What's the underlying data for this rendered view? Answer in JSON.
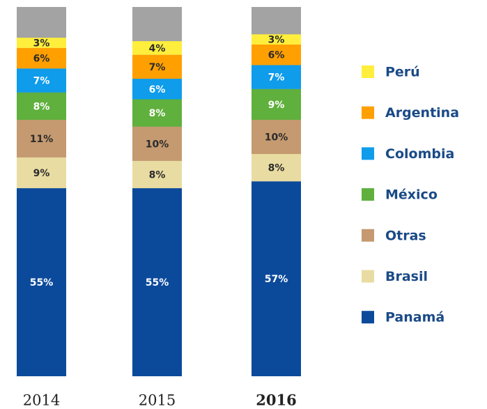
{
  "chart_data": {
    "type": "stacked_bar",
    "categories": [
      "2014",
      "2015",
      "2016"
    ],
    "series": [
      {
        "name": "Panamá",
        "color": "#0b4a9b",
        "values": [
          55,
          55,
          57
        ],
        "value_labels": [
          "55%",
          "55%",
          "57%"
        ]
      },
      {
        "name": "Brasil",
        "color": "#e9dca2",
        "values": [
          9,
          8,
          8
        ],
        "value_labels": [
          "9%",
          "8%",
          "8%"
        ]
      },
      {
        "name": "Otras",
        "color": "#c59a70",
        "values": [
          11,
          10,
          10
        ],
        "value_labels": [
          "11%",
          "10%",
          "10%"
        ]
      },
      {
        "name": "México",
        "color": "#5fb03c",
        "values": [
          8,
          8,
          9
        ],
        "value_labels": [
          "8%",
          "8%",
          "9%"
        ]
      },
      {
        "name": "Colombia",
        "color": "#0e9ceb",
        "values": [
          7,
          6,
          7
        ],
        "value_labels": [
          "7%",
          "6%",
          "7%"
        ]
      },
      {
        "name": "Argentina",
        "color": "#ff9f00",
        "values": [
          6,
          7,
          6
        ],
        "value_labels": [
          "6%",
          "7%",
          "6%"
        ]
      },
      {
        "name": "Perú",
        "color": "#ffee3c",
        "values": [
          3,
          4,
          3
        ],
        "value_labels": [
          "3%",
          "4%",
          "3%"
        ]
      }
    ],
    "ylim": [
      0,
      108
    ],
    "legend": "right"
  }
}
